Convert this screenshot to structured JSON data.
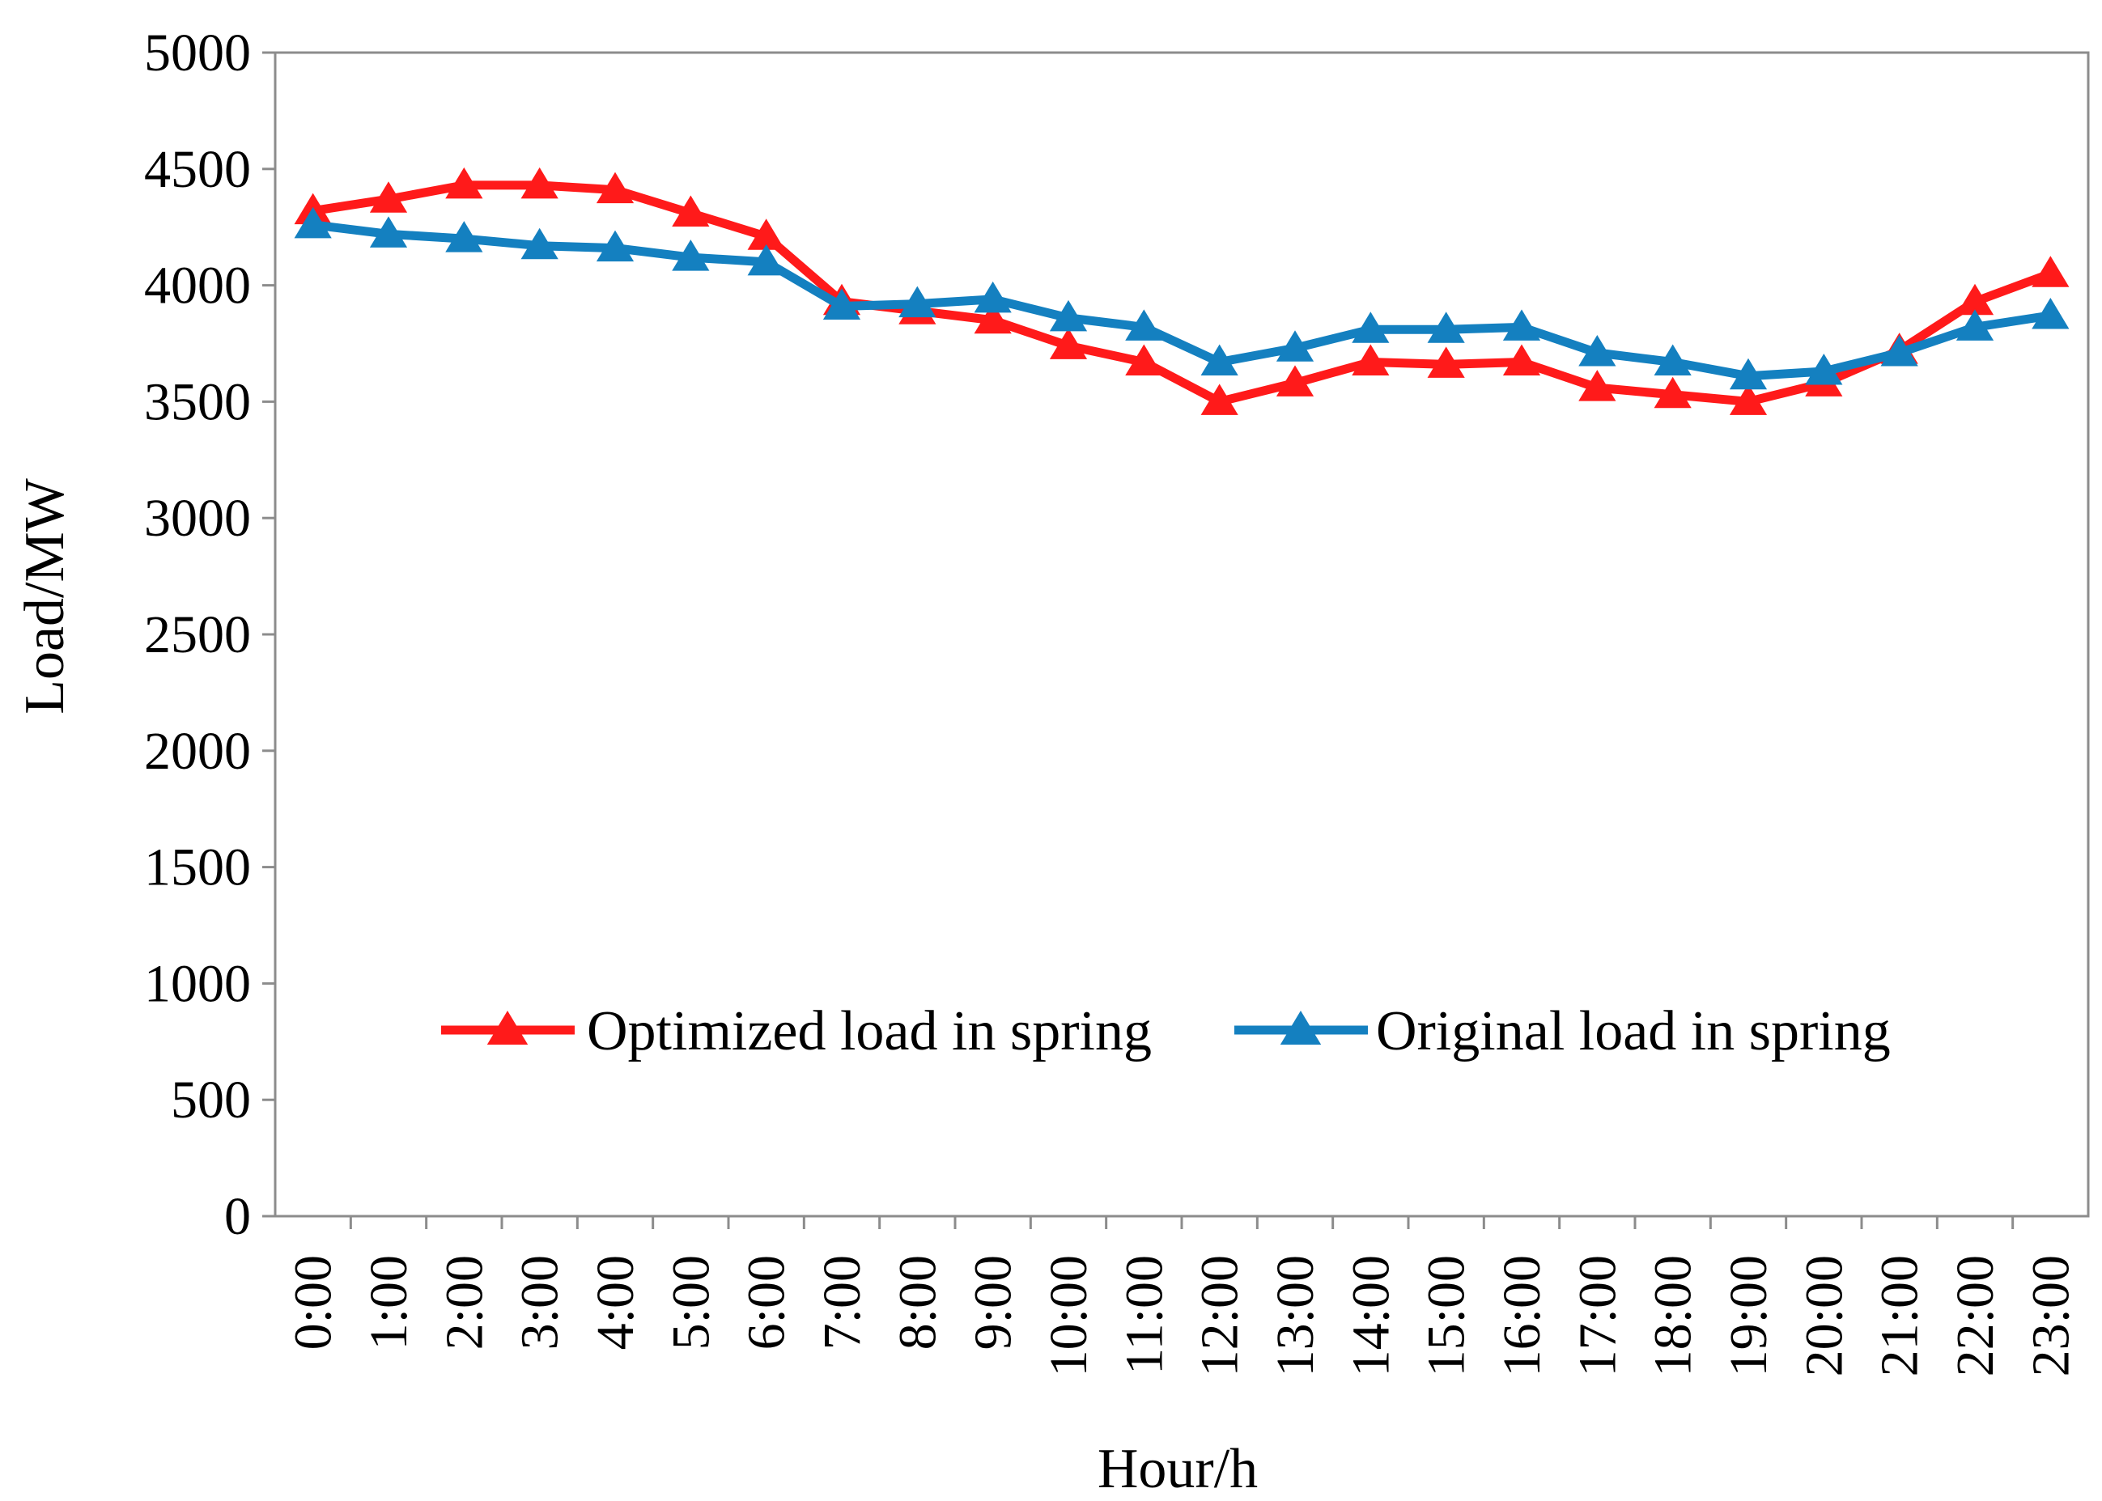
{
  "chart_data": {
    "type": "line",
    "title": "",
    "xlabel": "Hour/h",
    "ylabel": "Load/MW",
    "ylim": [
      0,
      5000
    ],
    "yticks": [
      0,
      500,
      1000,
      1500,
      2000,
      2500,
      3000,
      3500,
      4000,
      4500,
      5000
    ],
    "categories": [
      "0:00",
      "1:00",
      "2:00",
      "3:00",
      "4:00",
      "5:00",
      "6:00",
      "7:00",
      "8:00",
      "9:00",
      "10:00",
      "11:00",
      "12:00",
      "13:00",
      "14:00",
      "15:00",
      "16:00",
      "17:00",
      "18:00",
      "19:00",
      "20:00",
      "21:00",
      "22:00",
      "23:00"
    ],
    "grid": false,
    "legend_position": "bottom-center",
    "series": [
      {
        "name": "Optimized load in spring",
        "color": "#ff1a1a",
        "marker": "triangle",
        "values": [
          4320,
          4370,
          4430,
          4430,
          4410,
          4310,
          4210,
          3930,
          3890,
          3850,
          3740,
          3670,
          3500,
          3580,
          3670,
          3660,
          3670,
          3560,
          3530,
          3500,
          3580,
          3720,
          3930,
          4050
        ]
      },
      {
        "name": "Original load in spring",
        "color": "#1480c0",
        "marker": "triangle",
        "values": [
          4260,
          4220,
          4200,
          4170,
          4160,
          4120,
          4100,
          3910,
          3920,
          3940,
          3860,
          3820,
          3670,
          3730,
          3810,
          3810,
          3820,
          3710,
          3670,
          3610,
          3630,
          3710,
          3820,
          3870
        ]
      }
    ]
  }
}
